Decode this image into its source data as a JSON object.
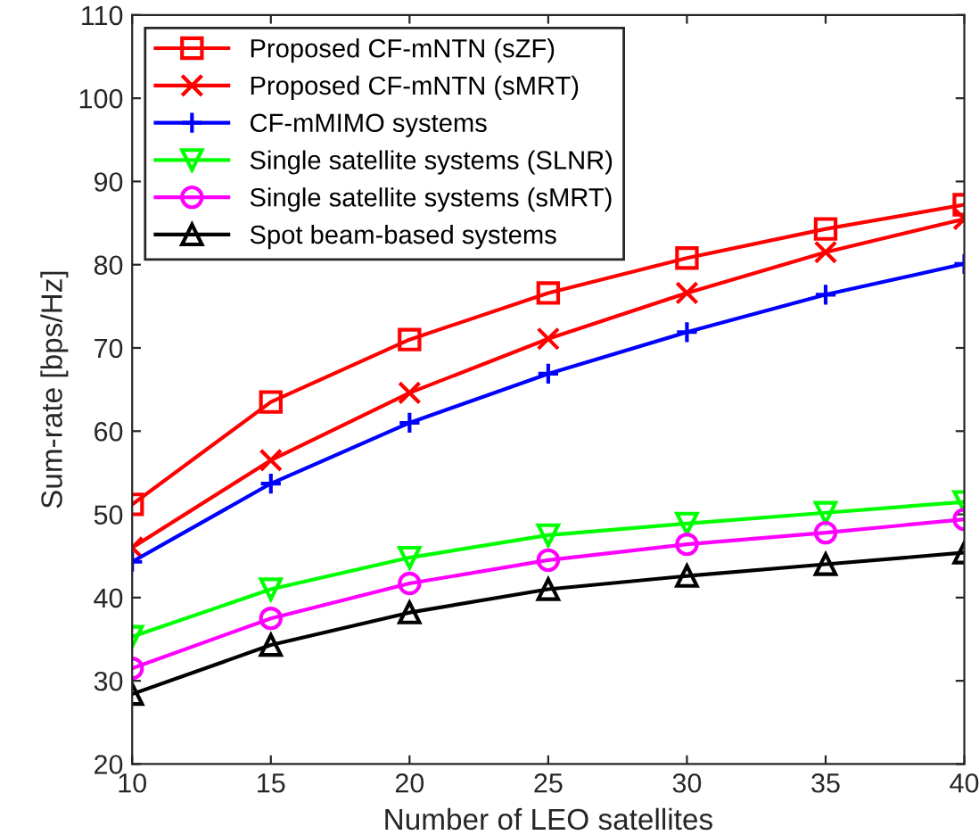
{
  "chart_data": {
    "type": "line",
    "xlabel": "Number of LEO satellites",
    "ylabel": "Sum-rate [bps/Hz]",
    "x": [
      10,
      15,
      20,
      25,
      30,
      35,
      40
    ],
    "series": [
      {
        "name": "Proposed CF-mNTN (sZF)",
        "color": "#ff0000",
        "marker": "square",
        "values": [
          51.2,
          63.5,
          71,
          76.6,
          80.8,
          84.3,
          87.2
        ]
      },
      {
        "name": "Proposed CF-mNTN (sMRT)",
        "color": "#ff0000",
        "marker": "x",
        "values": [
          46,
          56.5,
          64.6,
          71.1,
          76.6,
          81.5,
          85.5
        ]
      },
      {
        "name": "CF-mMIMO systems",
        "color": "#0000ff",
        "marker": "plus",
        "values": [
          44.3,
          53.7,
          61,
          66.9,
          71.9,
          76.4,
          80.1
        ]
      },
      {
        "name": "Single satellite systems (SLNR)",
        "color": "#00ff00",
        "marker": "triangle_down",
        "values": [
          35.3,
          41,
          44.8,
          47.5,
          48.9,
          50.2,
          51.5
        ]
      },
      {
        "name": "Single satellite systems (sMRT)",
        "color": "#ff00ff",
        "marker": "circle",
        "values": [
          31.5,
          37.5,
          41.7,
          44.5,
          46.4,
          47.8,
          49.4
        ]
      },
      {
        "name": "Spot beam-based systems",
        "color": "#000000",
        "marker": "triangle",
        "values": [
          28.4,
          34.3,
          38.2,
          41,
          42.6,
          44,
          45.4
        ]
      }
    ],
    "xlim": [
      10,
      40
    ],
    "ylim": [
      20,
      110
    ],
    "xticks": [
      10,
      15,
      20,
      25,
      30,
      35,
      40
    ],
    "yticks": [
      20,
      30,
      40,
      50,
      60,
      70,
      80,
      90,
      100,
      110
    ],
    "grid": false,
    "legend": "top left",
    "line_style": "solid"
  }
}
